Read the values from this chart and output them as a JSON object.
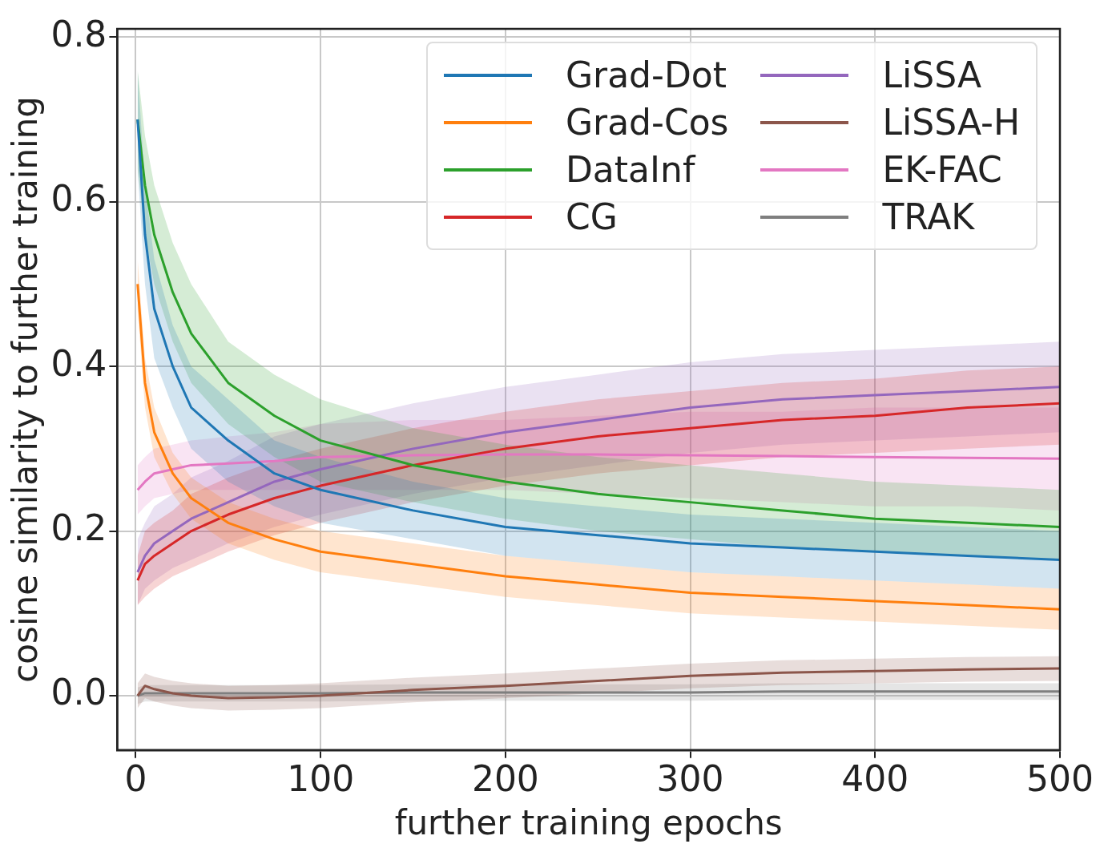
{
  "chart_data": {
    "type": "line",
    "xlabel": "further training epochs",
    "ylabel": "cosine similarity to further training",
    "x": [
      1,
      5,
      10,
      20,
      30,
      50,
      75,
      100,
      150,
      200,
      250,
      300,
      350,
      400,
      450,
      500
    ],
    "xlim": [
      -10,
      500
    ],
    "xticks": [
      0,
      100,
      200,
      300,
      400,
      500
    ],
    "ylim": [
      -0.066,
      0.81
    ],
    "yticks": [
      {
        "value": 0,
        "label": "0.0"
      },
      {
        "value": 0.2,
        "label": "0.2"
      },
      {
        "value": 0.4,
        "label": "0.4"
      },
      {
        "value": 0.6,
        "label": "0.6"
      },
      {
        "value": 0.8,
        "label": "0.8"
      }
    ],
    "grid": true,
    "legend": "top right",
    "marker": "none",
    "line_style": "solid",
    "series": [
      {
        "name": "Grad-Dot",
        "color": "#1f77b4",
        "values": [
          0.7,
          0.56,
          0.47,
          0.4,
          0.35,
          0.31,
          0.27,
          0.25,
          0.225,
          0.205,
          0.195,
          0.185,
          0.18,
          0.175,
          0.17,
          0.165
        ],
        "lower": [
          0.64,
          0.5,
          0.41,
          0.35,
          0.3,
          0.26,
          0.23,
          0.21,
          0.19,
          0.17,
          0.16,
          0.15,
          0.145,
          0.14,
          0.135,
          0.13
        ],
        "upper": [
          0.76,
          0.62,
          0.53,
          0.45,
          0.4,
          0.36,
          0.31,
          0.29,
          0.26,
          0.24,
          0.23,
          0.22,
          0.215,
          0.21,
          0.205,
          0.2
        ]
      },
      {
        "name": "Grad-Cos",
        "color": "#ff7f0e",
        "values": [
          0.5,
          0.38,
          0.32,
          0.27,
          0.24,
          0.21,
          0.19,
          0.175,
          0.16,
          0.145,
          0.135,
          0.125,
          0.12,
          0.115,
          0.11,
          0.105
        ],
        "lower": [
          0.47,
          0.35,
          0.29,
          0.245,
          0.215,
          0.185,
          0.165,
          0.15,
          0.135,
          0.12,
          0.11,
          0.1,
          0.095,
          0.09,
          0.085,
          0.08
        ],
        "upper": [
          0.53,
          0.41,
          0.35,
          0.295,
          0.265,
          0.235,
          0.215,
          0.2,
          0.185,
          0.17,
          0.16,
          0.15,
          0.145,
          0.14,
          0.135,
          0.13
        ]
      },
      {
        "name": "DataInf",
        "color": "#2ca02c",
        "values": [
          0.7,
          0.62,
          0.56,
          0.49,
          0.44,
          0.38,
          0.34,
          0.31,
          0.28,
          0.26,
          0.245,
          0.235,
          0.225,
          0.215,
          0.21,
          0.205
        ],
        "lower": [
          0.64,
          0.56,
          0.5,
          0.43,
          0.38,
          0.33,
          0.29,
          0.26,
          0.235,
          0.215,
          0.2,
          0.19,
          0.18,
          0.175,
          0.17,
          0.165
        ],
        "upper": [
          0.76,
          0.68,
          0.62,
          0.55,
          0.5,
          0.43,
          0.39,
          0.36,
          0.325,
          0.305,
          0.29,
          0.28,
          0.27,
          0.26,
          0.255,
          0.25
        ]
      },
      {
        "name": "CG",
        "color": "#d62728",
        "values": [
          0.14,
          0.16,
          0.17,
          0.185,
          0.2,
          0.22,
          0.24,
          0.255,
          0.28,
          0.3,
          0.315,
          0.325,
          0.335,
          0.34,
          0.35,
          0.355
        ],
        "lower": [
          0.11,
          0.12,
          0.13,
          0.145,
          0.155,
          0.175,
          0.195,
          0.21,
          0.235,
          0.255,
          0.27,
          0.28,
          0.29,
          0.295,
          0.3,
          0.305
        ],
        "upper": [
          0.17,
          0.2,
          0.21,
          0.225,
          0.245,
          0.265,
          0.285,
          0.3,
          0.325,
          0.345,
          0.36,
          0.37,
          0.38,
          0.385,
          0.395,
          0.4
        ]
      },
      {
        "name": "LiSSA",
        "color": "#9467bd",
        "values": [
          0.15,
          0.17,
          0.185,
          0.2,
          0.215,
          0.235,
          0.26,
          0.275,
          0.3,
          0.32,
          0.335,
          0.35,
          0.36,
          0.365,
          0.37,
          0.375
        ],
        "lower": [
          0.11,
          0.13,
          0.14,
          0.155,
          0.165,
          0.185,
          0.205,
          0.22,
          0.245,
          0.265,
          0.28,
          0.295,
          0.305,
          0.31,
          0.315,
          0.32
        ],
        "upper": [
          0.19,
          0.21,
          0.23,
          0.245,
          0.265,
          0.285,
          0.315,
          0.33,
          0.355,
          0.375,
          0.39,
          0.405,
          0.415,
          0.42,
          0.425,
          0.43
        ]
      },
      {
        "name": "LiSSA-H",
        "color": "#8c564b",
        "values": [
          0.0,
          0.012,
          0.008,
          0.003,
          0.0,
          -0.003,
          -0.002,
          0.0,
          0.007,
          0.012,
          0.018,
          0.024,
          0.028,
          0.03,
          0.032,
          0.033
        ],
        "lower": [
          -0.015,
          -0.003,
          -0.007,
          -0.012,
          -0.015,
          -0.018,
          -0.017,
          -0.015,
          -0.008,
          -0.003,
          0.003,
          0.009,
          0.013,
          0.015,
          0.017,
          0.018
        ],
        "upper": [
          0.015,
          0.027,
          0.023,
          0.018,
          0.015,
          0.012,
          0.013,
          0.015,
          0.022,
          0.027,
          0.033,
          0.039,
          0.043,
          0.045,
          0.047,
          0.048
        ]
      },
      {
        "name": "EK-FAC",
        "color": "#e377c2",
        "values": [
          0.25,
          0.26,
          0.27,
          0.275,
          0.28,
          0.282,
          0.285,
          0.29,
          0.292,
          0.293,
          0.293,
          0.292,
          0.291,
          0.29,
          0.289,
          0.288
        ],
        "lower": [
          0.22,
          0.23,
          0.24,
          0.245,
          0.25,
          0.25,
          0.25,
          0.25,
          0.25,
          0.25,
          0.245,
          0.24,
          0.235,
          0.23,
          0.23,
          0.225
        ],
        "upper": [
          0.28,
          0.29,
          0.3,
          0.305,
          0.31,
          0.315,
          0.32,
          0.33,
          0.335,
          0.335,
          0.34,
          0.345,
          0.345,
          0.35,
          0.35,
          0.35
        ]
      },
      {
        "name": "TRAK",
        "color": "#7f7f7f",
        "values": [
          0.0,
          0.003,
          0.003,
          0.003,
          0.003,
          0.003,
          0.003,
          0.003,
          0.004,
          0.004,
          0.004,
          0.004,
          0.005,
          0.005,
          0.005,
          0.005
        ],
        "lower": [
          -0.01,
          -0.007,
          -0.007,
          -0.007,
          -0.007,
          -0.007,
          -0.007,
          -0.007,
          -0.006,
          -0.006,
          -0.006,
          -0.006,
          -0.005,
          -0.005,
          -0.005,
          -0.005
        ],
        "upper": [
          0.01,
          0.013,
          0.013,
          0.013,
          0.013,
          0.013,
          0.013,
          0.013,
          0.014,
          0.014,
          0.014,
          0.014,
          0.015,
          0.015,
          0.015,
          0.015
        ]
      }
    ]
  }
}
